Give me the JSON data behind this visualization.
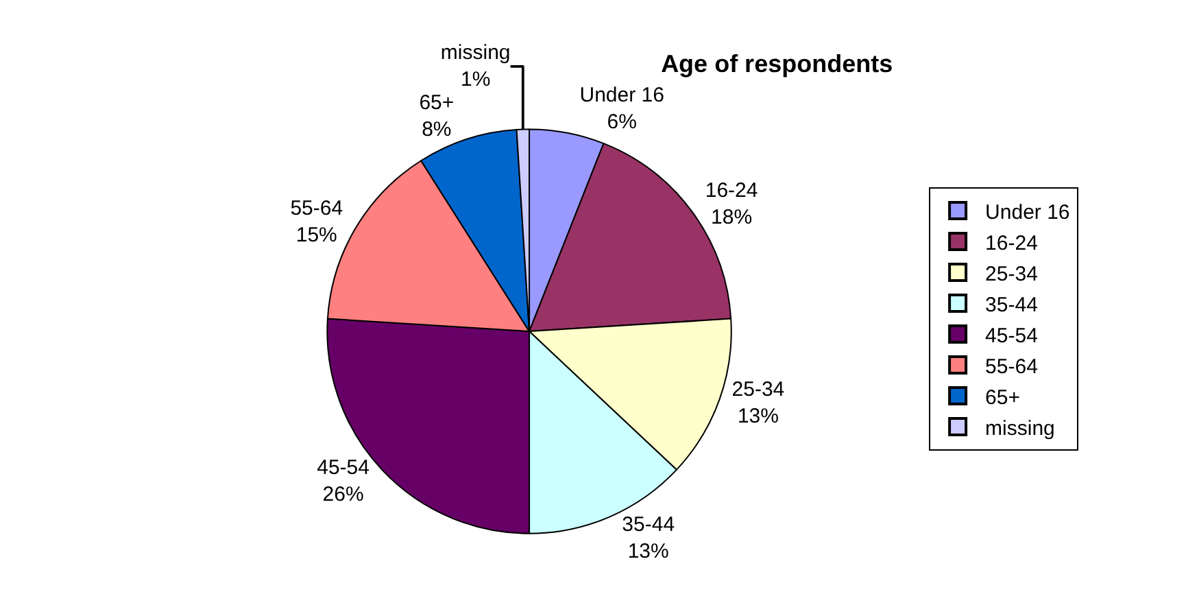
{
  "chart_data": {
    "type": "pie",
    "title": "Age of respondents",
    "categories": [
      "Under 16",
      "16-24",
      "25-34",
      "35-44",
      "45-54",
      "55-64",
      "65+",
      "missing"
    ],
    "values": [
      6,
      18,
      13,
      13,
      26,
      15,
      8,
      1
    ],
    "value_labels": [
      "6%",
      "18%",
      "13%",
      "13%",
      "26%",
      "15%",
      "8%",
      "1%"
    ],
    "colors": [
      "#9999ff",
      "#993366",
      "#ffffcc",
      "#ccffff",
      "#660066",
      "#ff8080",
      "#0066cc",
      "#ccccff"
    ],
    "legend": "right"
  }
}
